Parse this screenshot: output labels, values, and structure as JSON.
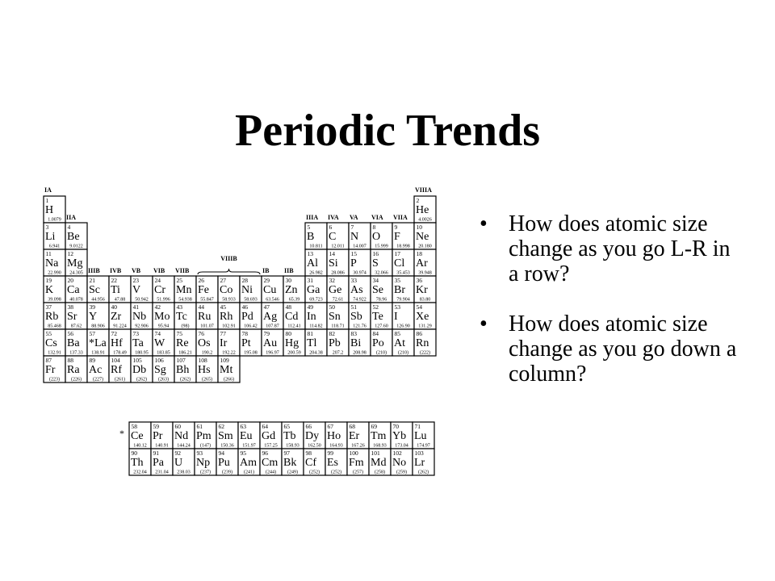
{
  "slide": {
    "title": "Periodic Trends",
    "bullets": [
      "How does atomic size change as you go L-R in a row?",
      "How does atomic size change as you go down a column?"
    ]
  },
  "periodic_table": {
    "footnote_marker": "*",
    "group_labels": [
      {
        "text": "IA",
        "col": 1,
        "row": 0
      },
      {
        "text": "IIA",
        "col": 2,
        "row": 1
      },
      {
        "text": "IIIB",
        "col": 3,
        "row": 3
      },
      {
        "text": "IVB",
        "col": 4,
        "row": 3
      },
      {
        "text": "VB",
        "col": 5,
        "row": 3
      },
      {
        "text": "VIB",
        "col": 6,
        "row": 3
      },
      {
        "text": "VIIB",
        "col": 7,
        "row": 3
      },
      {
        "text": "VIIIB",
        "col": 9,
        "row": 3
      },
      {
        "text": "IB",
        "col": 11,
        "row": 3
      },
      {
        "text": "IIB",
        "col": 12,
        "row": 3
      },
      {
        "text": "IIIA",
        "col": 13,
        "row": 1
      },
      {
        "text": "IVA",
        "col": 14,
        "row": 1
      },
      {
        "text": "VA",
        "col": 15,
        "row": 1
      },
      {
        "text": "VIA",
        "col": 16,
        "row": 1
      },
      {
        "text": "VIIA",
        "col": 17,
        "row": 1
      },
      {
        "text": "VIIIA",
        "col": 18,
        "row": 0
      }
    ],
    "elements": [
      {
        "n": "1",
        "s": "H",
        "m": "1.0079",
        "r": 1,
        "c": 1
      },
      {
        "n": "2",
        "s": "He",
        "m": "4.0026",
        "r": 1,
        "c": 18
      },
      {
        "n": "3",
        "s": "Li",
        "m": "6.941",
        "r": 2,
        "c": 1
      },
      {
        "n": "4",
        "s": "Be",
        "m": "9.0122",
        "r": 2,
        "c": 2
      },
      {
        "n": "5",
        "s": "B",
        "m": "10.811",
        "r": 2,
        "c": 13
      },
      {
        "n": "6",
        "s": "C",
        "m": "12.011",
        "r": 2,
        "c": 14
      },
      {
        "n": "7",
        "s": "N",
        "m": "14.007",
        "r": 2,
        "c": 15
      },
      {
        "n": "8",
        "s": "O",
        "m": "15.999",
        "r": 2,
        "c": 16
      },
      {
        "n": "9",
        "s": "F",
        "m": "18.998",
        "r": 2,
        "c": 17
      },
      {
        "n": "10",
        "s": "Ne",
        "m": "20.180",
        "r": 2,
        "c": 18
      },
      {
        "n": "11",
        "s": "Na",
        "m": "22.990",
        "r": 3,
        "c": 1
      },
      {
        "n": "12",
        "s": "Mg",
        "m": "24.305",
        "r": 3,
        "c": 2
      },
      {
        "n": "13",
        "s": "Al",
        "m": "26.982",
        "r": 3,
        "c": 13
      },
      {
        "n": "14",
        "s": "Si",
        "m": "28.086",
        "r": 3,
        "c": 14
      },
      {
        "n": "15",
        "s": "P",
        "m": "30.974",
        "r": 3,
        "c": 15
      },
      {
        "n": "16",
        "s": "S",
        "m": "32.066",
        "r": 3,
        "c": 16
      },
      {
        "n": "17",
        "s": "Cl",
        "m": "35.453",
        "r": 3,
        "c": 17
      },
      {
        "n": "18",
        "s": "Ar",
        "m": "39.948",
        "r": 3,
        "c": 18
      },
      {
        "n": "19",
        "s": "K",
        "m": "39.098",
        "r": 4,
        "c": 1
      },
      {
        "n": "20",
        "s": "Ca",
        "m": "40.078",
        "r": 4,
        "c": 2
      },
      {
        "n": "21",
        "s": "Sc",
        "m": "44.956",
        "r": 4,
        "c": 3
      },
      {
        "n": "22",
        "s": "Ti",
        "m": "47.88",
        "r": 4,
        "c": 4
      },
      {
        "n": "23",
        "s": "V",
        "m": "50.942",
        "r": 4,
        "c": 5
      },
      {
        "n": "24",
        "s": "Cr",
        "m": "51.996",
        "r": 4,
        "c": 6
      },
      {
        "n": "25",
        "s": "Mn",
        "m": "54.938",
        "r": 4,
        "c": 7
      },
      {
        "n": "26",
        "s": "Fe",
        "m": "55.847",
        "r": 4,
        "c": 8
      },
      {
        "n": "27",
        "s": "Co",
        "m": "58.933",
        "r": 4,
        "c": 9
      },
      {
        "n": "28",
        "s": "Ni",
        "m": "58.693",
        "r": 4,
        "c": 10
      },
      {
        "n": "29",
        "s": "Cu",
        "m": "63.546",
        "r": 4,
        "c": 11
      },
      {
        "n": "30",
        "s": "Zn",
        "m": "65.39",
        "r": 4,
        "c": 12
      },
      {
        "n": "31",
        "s": "Ga",
        "m": "69.723",
        "r": 4,
        "c": 13
      },
      {
        "n": "32",
        "s": "Ge",
        "m": "72.61",
        "r": 4,
        "c": 14
      },
      {
        "n": "33",
        "s": "As",
        "m": "74.922",
        "r": 4,
        "c": 15
      },
      {
        "n": "34",
        "s": "Se",
        "m": "78.96",
        "r": 4,
        "c": 16
      },
      {
        "n": "35",
        "s": "Br",
        "m": "79.904",
        "r": 4,
        "c": 17
      },
      {
        "n": "36",
        "s": "Kr",
        "m": "83.80",
        "r": 4,
        "c": 18
      },
      {
        "n": "37",
        "s": "Rb",
        "m": "85.468",
        "r": 5,
        "c": 1
      },
      {
        "n": "38",
        "s": "Sr",
        "m": "87.62",
        "r": 5,
        "c": 2
      },
      {
        "n": "39",
        "s": "Y",
        "m": "88.906",
        "r": 5,
        "c": 3
      },
      {
        "n": "40",
        "s": "Zr",
        "m": "91.224",
        "r": 5,
        "c": 4
      },
      {
        "n": "41",
        "s": "Nb",
        "m": "92.906",
        "r": 5,
        "c": 5
      },
      {
        "n": "42",
        "s": "Mo",
        "m": "95.94",
        "r": 5,
        "c": 6
      },
      {
        "n": "43",
        "s": "Tc",
        "m": "(98)",
        "r": 5,
        "c": 7
      },
      {
        "n": "44",
        "s": "Ru",
        "m": "101.07",
        "r": 5,
        "c": 8
      },
      {
        "n": "45",
        "s": "Rh",
        "m": "102.91",
        "r": 5,
        "c": 9
      },
      {
        "n": "46",
        "s": "Pd",
        "m": "106.42",
        "r": 5,
        "c": 10
      },
      {
        "n": "47",
        "s": "Ag",
        "m": "107.87",
        "r": 5,
        "c": 11
      },
      {
        "n": "48",
        "s": "Cd",
        "m": "112.41",
        "r": 5,
        "c": 12
      },
      {
        "n": "49",
        "s": "In",
        "m": "114.82",
        "r": 5,
        "c": 13
      },
      {
        "n": "50",
        "s": "Sn",
        "m": "118.71",
        "r": 5,
        "c": 14
      },
      {
        "n": "51",
        "s": "Sb",
        "m": "121.76",
        "r": 5,
        "c": 15
      },
      {
        "n": "52",
        "s": "Te",
        "m": "127.60",
        "r": 5,
        "c": 16
      },
      {
        "n": "53",
        "s": "I",
        "m": "126.90",
        "r": 5,
        "c": 17
      },
      {
        "n": "54",
        "s": "Xe",
        "m": "131.29",
        "r": 5,
        "c": 18
      },
      {
        "n": "55",
        "s": "Cs",
        "m": "132.91",
        "r": 6,
        "c": 1
      },
      {
        "n": "56",
        "s": "Ba",
        "m": "137.33",
        "r": 6,
        "c": 2
      },
      {
        "n": "57",
        "s": "*La",
        "m": "138.91",
        "r": 6,
        "c": 3
      },
      {
        "n": "72",
        "s": "Hf",
        "m": "178.49",
        "r": 6,
        "c": 4
      },
      {
        "n": "73",
        "s": "Ta",
        "m": "180.95",
        "r": 6,
        "c": 5
      },
      {
        "n": "74",
        "s": "W",
        "m": "183.85",
        "r": 6,
        "c": 6
      },
      {
        "n": "75",
        "s": "Re",
        "m": "186.21",
        "r": 6,
        "c": 7
      },
      {
        "n": "76",
        "s": "Os",
        "m": "190.2",
        "r": 6,
        "c": 8
      },
      {
        "n": "77",
        "s": "Ir",
        "m": "192.22",
        "r": 6,
        "c": 9
      },
      {
        "n": "78",
        "s": "Pt",
        "m": "195.08",
        "r": 6,
        "c": 10
      },
      {
        "n": "79",
        "s": "Au",
        "m": "196.97",
        "r": 6,
        "c": 11
      },
      {
        "n": "80",
        "s": "Hg",
        "m": "200.59",
        "r": 6,
        "c": 12
      },
      {
        "n": "81",
        "s": "Tl",
        "m": "204.38",
        "r": 6,
        "c": 13
      },
      {
        "n": "82",
        "s": "Pb",
        "m": "207.2",
        "r": 6,
        "c": 14
      },
      {
        "n": "83",
        "s": "Bi",
        "m": "208.98",
        "r": 6,
        "c": 15
      },
      {
        "n": "84",
        "s": "Po",
        "m": "(210)",
        "r": 6,
        "c": 16
      },
      {
        "n": "85",
        "s": "At",
        "m": "(210)",
        "r": 6,
        "c": 17
      },
      {
        "n": "86",
        "s": "Rn",
        "m": "(222)",
        "r": 6,
        "c": 18
      },
      {
        "n": "87",
        "s": "Fr",
        "m": "(223)",
        "r": 7,
        "c": 1
      },
      {
        "n": "88",
        "s": "Ra",
        "m": "(226)",
        "r": 7,
        "c": 2
      },
      {
        "n": "89",
        "s": "Ac",
        "m": "(227)",
        "r": 7,
        "c": 3
      },
      {
        "n": "104",
        "s": "Rf",
        "m": "(261)",
        "r": 7,
        "c": 4
      },
      {
        "n": "105",
        "s": "Db",
        "m": "(262)",
        "r": 7,
        "c": 5
      },
      {
        "n": "106",
        "s": "Sg",
        "m": "(263)",
        "r": 7,
        "c": 6
      },
      {
        "n": "107",
        "s": "Bh",
        "m": "(262)",
        "r": 7,
        "c": 7
      },
      {
        "n": "108",
        "s": "Hs",
        "m": "(265)",
        "r": 7,
        "c": 8
      },
      {
        "n": "109",
        "s": "Mt",
        "m": "(266)",
        "r": 7,
        "c": 9
      },
      {
        "n": "58",
        "s": "Ce",
        "m": "140.12",
        "r": 9,
        "c": 4
      },
      {
        "n": "59",
        "s": "Pr",
        "m": "140.91",
        "r": 9,
        "c": 5
      },
      {
        "n": "60",
        "s": "Nd",
        "m": "144.24",
        "r": 9,
        "c": 6
      },
      {
        "n": "61",
        "s": "Pm",
        "m": "(147)",
        "r": 9,
        "c": 7
      },
      {
        "n": "62",
        "s": "Sm",
        "m": "150.36",
        "r": 9,
        "c": 8
      },
      {
        "n": "63",
        "s": "Eu",
        "m": "151.97",
        "r": 9,
        "c": 9
      },
      {
        "n": "64",
        "s": "Gd",
        "m": "157.25",
        "r": 9,
        "c": 10
      },
      {
        "n": "65",
        "s": "Tb",
        "m": "158.93",
        "r": 9,
        "c": 11
      },
      {
        "n": "66",
        "s": "Dy",
        "m": "162.50",
        "r": 9,
        "c": 12
      },
      {
        "n": "67",
        "s": "Ho",
        "m": "164.93",
        "r": 9,
        "c": 13
      },
      {
        "n": "68",
        "s": "Er",
        "m": "167.26",
        "r": 9,
        "c": 14
      },
      {
        "n": "69",
        "s": "Tm",
        "m": "168.93",
        "r": 9,
        "c": 15
      },
      {
        "n": "70",
        "s": "Yb",
        "m": "173.04",
        "r": 9,
        "c": 16
      },
      {
        "n": "71",
        "s": "Lu",
        "m": "174.97",
        "r": 9,
        "c": 17
      },
      {
        "n": "90",
        "s": "Th",
        "m": "232.04",
        "r": 10,
        "c": 4
      },
      {
        "n": "91",
        "s": "Pa",
        "m": "231.04",
        "r": 10,
        "c": 5
      },
      {
        "n": "92",
        "s": "U",
        "m": "238.03",
        "r": 10,
        "c": 6
      },
      {
        "n": "93",
        "s": "Np",
        "m": "(237)",
        "r": 10,
        "c": 7
      },
      {
        "n": "94",
        "s": "Pu",
        "m": "(239)",
        "r": 10,
        "c": 8
      },
      {
        "n": "95",
        "s": "Am",
        "m": "(241)",
        "r": 10,
        "c": 9
      },
      {
        "n": "96",
        "s": "Cm",
        "m": "(244)",
        "r": 10,
        "c": 10
      },
      {
        "n": "97",
        "s": "Bk",
        "m": "(249)",
        "r": 10,
        "c": 11
      },
      {
        "n": "98",
        "s": "Cf",
        "m": "(252)",
        "r": 10,
        "c": 12
      },
      {
        "n": "99",
        "s": "Es",
        "m": "(252)",
        "r": 10,
        "c": 13
      },
      {
        "n": "100",
        "s": "Fm",
        "m": "(257)",
        "r": 10,
        "c": 14
      },
      {
        "n": "101",
        "s": "Md",
        "m": "(258)",
        "r": 10,
        "c": 15
      },
      {
        "n": "102",
        "s": "No",
        "m": "(259)",
        "r": 10,
        "c": 16
      },
      {
        "n": "103",
        "s": "Lr",
        "m": "(262)",
        "r": 10,
        "c": 17
      }
    ]
  }
}
